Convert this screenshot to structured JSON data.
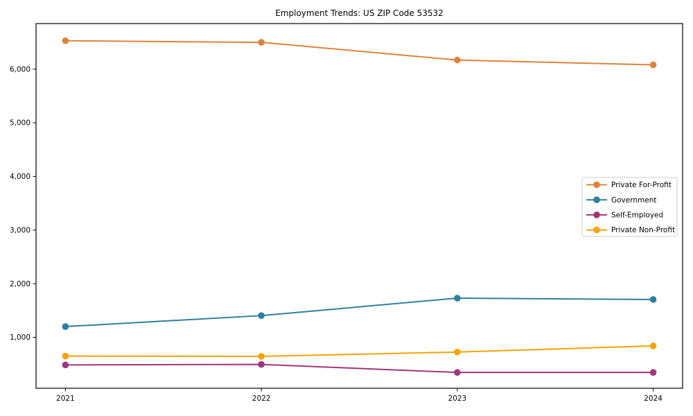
{
  "chart_data": {
    "type": "line",
    "title": "Employment Trends: US ZIP Code 53532",
    "xlabel": "",
    "ylabel": "",
    "x": [
      2021,
      2022,
      2023,
      2024
    ],
    "x_tick_labels": [
      "2021",
      "2022",
      "2023",
      "2024"
    ],
    "y_ticks": [
      1000,
      2000,
      3000,
      4000,
      5000,
      6000
    ],
    "y_tick_labels": [
      "1,000",
      "2,000",
      "3,000",
      "4,000",
      "5,000",
      "6,000"
    ],
    "xlim": [
      2020.85,
      2024.15
    ],
    "ylim": [
      50,
      6850
    ],
    "grid": false,
    "legend_position": "center right",
    "series": [
      {
        "name": "Private For-Profit",
        "color": "#e0823a",
        "values": [
          6530,
          6500,
          6170,
          6080
        ]
      },
      {
        "name": "Government",
        "color": "#2e7e9f",
        "values": [
          1200,
          1405,
          1730,
          1705
        ]
      },
      {
        "name": "Self-Employed",
        "color": "#a13579",
        "values": [
          485,
          495,
          345,
          345
        ]
      },
      {
        "name": "Private Non-Profit",
        "color": "#f4a300",
        "values": [
          650,
          645,
          725,
          840
        ]
      }
    ]
  }
}
